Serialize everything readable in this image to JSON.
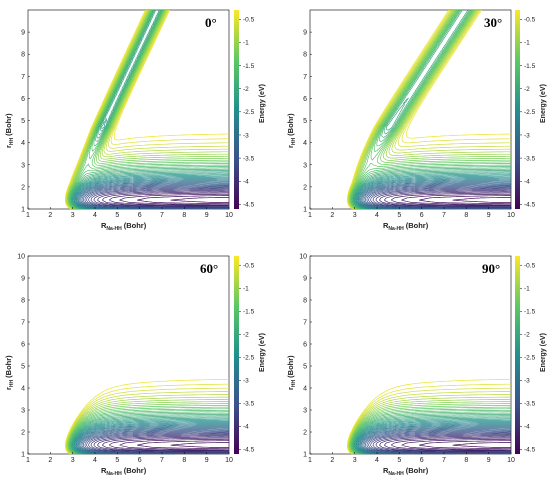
{
  "figure": {
    "panels": [
      {
        "angle_label": "0°",
        "x_label_main": "R",
        "x_label_sub": "Na-HH",
        "x_label_unit": "(Bohr)",
        "y_label_main": "r",
        "y_label_sub": "HH",
        "y_label_unit": "(Bohr)",
        "colorbar_label": "Energy (eV)"
      },
      {
        "angle_label": "30°",
        "x_label_main": "R",
        "x_label_sub": "Na-HH",
        "x_label_unit": "(Bohr)",
        "y_label_main": "r",
        "y_label_sub": "HH",
        "y_label_unit": "(Bohr)",
        "colorbar_label": "Energy (eV)"
      },
      {
        "angle_label": "60°",
        "x_label_main": "R",
        "x_label_sub": "Na-HH",
        "x_label_unit": "(Bohr)",
        "y_label_main": "r",
        "y_label_sub": "HH",
        "y_label_unit": "(Bohr)",
        "colorbar_label": "Energy (eV)"
      },
      {
        "angle_label": "90°",
        "x_label_main": "R",
        "x_label_sub": "Na-HH",
        "x_label_unit": "(Bohr)",
        "y_label_main": "r",
        "y_label_sub": "HH",
        "y_label_unit": "(Bohr)",
        "colorbar_label": "Energy (eV)"
      }
    ]
  },
  "chart_data": [
    {
      "type": "contour",
      "title": "0°",
      "xlabel": "R Na-HH (Bohr)",
      "ylabel": "r HH (Bohr)",
      "xlim": [
        1,
        10
      ],
      "ylim": [
        1,
        10
      ],
      "x_ticks": [
        1,
        2,
        3,
        4,
        5,
        6,
        7,
        8,
        9,
        10
      ],
      "y_ticks": [
        1,
        2,
        3,
        4,
        5,
        6,
        7,
        8,
        9
      ],
      "colorbar": {
        "label": "Energy (eV)",
        "range": [
          -4.6,
          -0.3
        ],
        "ticks": [
          -0.5,
          -1,
          -1.5,
          -2,
          -2.5,
          -3,
          -3.5,
          -4,
          -4.5
        ],
        "colormap": [
          "#440154",
          "#3b528b",
          "#21908d",
          "#5dc963",
          "#fde725"
        ]
      },
      "levels": [
        -4.5,
        -4.4,
        -4.3,
        -4.2,
        -4.1,
        -4.0,
        -3.9,
        -3.8,
        -3.7,
        -3.6,
        -3.5,
        -3.4,
        -3.3,
        -3.2,
        -3.1,
        -3.0,
        -2.9,
        -2.8,
        -2.7,
        -2.6,
        -2.5,
        -2.4,
        -2.3,
        -2.2,
        -2.1,
        -2.0,
        -1.9,
        -1.8,
        -1.7,
        -1.6,
        -1.5,
        -1.4,
        -1.3,
        -1.2,
        -1.1,
        -1.0,
        -0.9,
        -0.8,
        -0.7,
        -0.6,
        -0.5,
        -0.4
      ]
    },
    {
      "type": "contour",
      "title": "30°",
      "xlabel": "R Na-HH (Bohr)",
      "ylabel": "r HH (Bohr)",
      "xlim": [
        1,
        10
      ],
      "ylim": [
        1,
        10
      ],
      "x_ticks": [
        1,
        2,
        3,
        4,
        5,
        6,
        7,
        8,
        9,
        10
      ],
      "y_ticks": [
        1,
        2,
        3,
        4,
        5,
        6,
        7,
        8,
        9
      ],
      "colorbar": {
        "label": "Energy (eV)",
        "range": [
          -4.6,
          -0.3
        ],
        "ticks": [
          -0.5,
          -1,
          -1.5,
          -2,
          -2.5,
          -3,
          -3.5,
          -4,
          -4.5
        ],
        "colormap": [
          "#440154",
          "#3b528b",
          "#21908d",
          "#5dc963",
          "#fde725"
        ]
      },
      "levels": [
        -4.5,
        -4.4,
        -4.3,
        -4.2,
        -4.1,
        -4.0,
        -3.9,
        -3.8,
        -3.7,
        -3.6,
        -3.5,
        -3.4,
        -3.3,
        -3.2,
        -3.1,
        -3.0,
        -2.9,
        -2.8,
        -2.7,
        -2.6,
        -2.5,
        -2.4,
        -2.3,
        -2.2,
        -2.1,
        -2.0,
        -1.9,
        -1.8,
        -1.7,
        -1.6,
        -1.5,
        -1.4,
        -1.3,
        -1.2,
        -1.1,
        -1.0,
        -0.9,
        -0.8,
        -0.7,
        -0.6,
        -0.5,
        -0.4
      ]
    },
    {
      "type": "contour",
      "title": "60°",
      "xlabel": "R Na-HH (Bohr)",
      "ylabel": "r HH (Bohr)",
      "xlim": [
        1,
        10
      ],
      "ylim": [
        1,
        10
      ],
      "x_ticks": [
        1,
        2,
        3,
        4,
        5,
        6,
        7,
        8,
        9,
        10
      ],
      "y_ticks": [
        1,
        2,
        3,
        4,
        5,
        6,
        7,
        8,
        9,
        10
      ],
      "colorbar": {
        "label": "Energy (eV)",
        "range": [
          -4.6,
          -0.3
        ],
        "ticks": [
          -0.5,
          -1,
          -1.5,
          -2,
          -2.5,
          -3,
          -3.5,
          -4,
          -4.5
        ],
        "colormap": [
          "#440154",
          "#3b528b",
          "#21908d",
          "#5dc963",
          "#fde725"
        ]
      },
      "levels": [
        -4.5,
        -4.4,
        -4.3,
        -4.2,
        -4.1,
        -4.0,
        -3.9,
        -3.8,
        -3.7,
        -3.6,
        -3.5,
        -3.4,
        -3.3,
        -3.2,
        -3.1,
        -3.0,
        -2.9,
        -2.8,
        -2.7,
        -2.6,
        -2.5,
        -2.4,
        -2.3,
        -2.2,
        -2.1,
        -2.0,
        -1.9,
        -1.8,
        -1.7,
        -1.6,
        -1.5,
        -1.4,
        -1.3,
        -1.2,
        -1.1,
        -1.0,
        -0.9,
        -0.8,
        -0.7,
        -0.6,
        -0.5,
        -0.4
      ]
    },
    {
      "type": "contour",
      "title": "90°",
      "xlabel": "R Na-HH (Bohr)",
      "ylabel": "r HH (Bohr)",
      "xlim": [
        1,
        10
      ],
      "ylim": [
        1,
        10
      ],
      "x_ticks": [
        1,
        2,
        3,
        4,
        5,
        6,
        7,
        8,
        9,
        10
      ],
      "y_ticks": [
        1,
        2,
        3,
        4,
        5,
        6,
        7,
        8,
        9,
        10
      ],
      "colorbar": {
        "label": "Energy (eV)",
        "range": [
          -4.6,
          -0.3
        ],
        "ticks": [
          -0.5,
          -1,
          -1.5,
          -2,
          -2.5,
          -3,
          -3.5,
          -4,
          -4.5
        ],
        "colormap": [
          "#440154",
          "#3b528b",
          "#21908d",
          "#5dc963",
          "#fde725"
        ]
      },
      "levels": [
        -4.5,
        -4.4,
        -4.3,
        -4.2,
        -4.1,
        -4.0,
        -3.9,
        -3.8,
        -3.7,
        -3.6,
        -3.5,
        -3.4,
        -3.3,
        -3.2,
        -3.1,
        -3.0,
        -2.9,
        -2.8,
        -2.7,
        -2.6,
        -2.5,
        -2.4,
        -2.3,
        -2.2,
        -2.1,
        -2.0,
        -1.9,
        -1.8,
        -1.7,
        -1.6,
        -1.5,
        -1.4,
        -1.3,
        -1.2,
        -1.1,
        -1.0,
        -0.9,
        -0.8,
        -0.7,
        -0.6,
        -0.5,
        -0.4
      ]
    }
  ]
}
